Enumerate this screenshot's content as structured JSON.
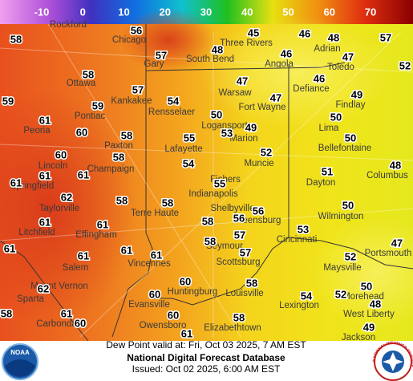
{
  "colorbar": {
    "labels": [
      -10,
      0,
      10,
      20,
      30,
      40,
      50,
      60,
      70
    ]
  },
  "stations": [
    58,
    56,
    45,
    46,
    48,
    57,
    57,
    48,
    46,
    47,
    52,
    58,
    46,
    47,
    57,
    54,
    47,
    49,
    59,
    59,
    50,
    50,
    61,
    60,
    58,
    53,
    49,
    55,
    50,
    52,
    60,
    58,
    54,
    48,
    61,
    61,
    51,
    61,
    55,
    62,
    58,
    58,
    50,
    56,
    56,
    61,
    61,
    58,
    57,
    53,
    61,
    61,
    61,
    58,
    61,
    57,
    47,
    52,
    60,
    58,
    62,
    60,
    54,
    52,
    50,
    48,
    58,
    61,
    60,
    58,
    60,
    49,
    61
  ],
  "cities": [
    "Rockford",
    "Chicago",
    "Three Rivers",
    "Adrian",
    "Gary",
    "South Bend",
    "Angola",
    "Toledo",
    "Ottawa",
    "Warsaw",
    "Defiance",
    "Kankakee",
    "Fort Wayne",
    "Findlay",
    "Peoria",
    "Pontiac",
    "Rensselaer",
    "Logansport",
    "Lima",
    "Marion",
    "Paxton",
    "Lafayette",
    "Bellefontaine",
    "Lincoln",
    "Champaign",
    "Muncie",
    "Columbus",
    "Fishers",
    "Dayton",
    "Springfield",
    "Indianapolis",
    "Taylorville",
    "Shelbyville",
    "Terre Haute",
    "Greensburg",
    "Wilmington",
    "Litchfield",
    "Effingham",
    "Cincinnati",
    "Seymour",
    "Portsmouth",
    "Salem",
    "Vincennes",
    "Scottsburg",
    "Maysville",
    "Mount Vernon",
    "Huntingburg",
    "Louisville",
    "Morehead",
    "Sparta",
    "Evansville",
    "Lexington",
    "West Liberty",
    "Carbondale",
    "Owensboro",
    "Elizabethtown",
    "Jackson"
  ],
  "footer": {
    "valid": "Dew Point valid at: Fri, Oct 03 2025, 7 AM EST",
    "title": "National Digital Forecast Database",
    "issued": "Issued: Oct 02 2025, 6:00 AM EST"
  },
  "logos": {
    "left": "NOAA",
    "right": "NATIONAL WEATHER SERVICE"
  }
}
